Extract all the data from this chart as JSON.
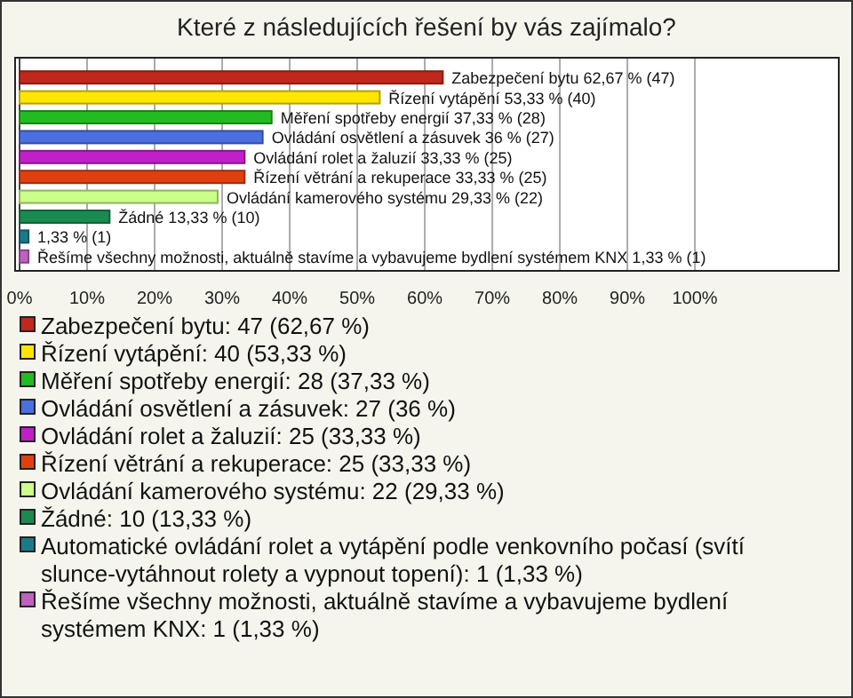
{
  "chart_data": {
    "type": "bar",
    "orientation": "horizontal",
    "stacked": true,
    "title": "Které z následujících řešení by vás zajímalo?",
    "categories": [
      null,
      null,
      null,
      null,
      null,
      null,
      null,
      null,
      null,
      null
    ],
    "series": [
      {
        "name": "Zabezpečení bytu: 47 (62,67 %)",
        "color": "#c0281c",
        "values": [
          62.67,
          null,
          null,
          null,
          null,
          null,
          null,
          null,
          null,
          null
        ],
        "value_labels": [
          "Zabezpečení bytu 62,67 % (47)",
          null,
          null,
          null,
          null,
          null,
          null,
          null,
          null,
          null
        ]
      },
      {
        "name": "Řízení vytápění: 40 (53,33 %)",
        "color": "#ffe600",
        "values": [
          null,
          53.33,
          null,
          null,
          null,
          null,
          null,
          null,
          null,
          null
        ],
        "value_labels": [
          null,
          "Řízení vytápění 53,33 % (40)",
          null,
          null,
          null,
          null,
          null,
          null,
          null,
          null
        ]
      },
      {
        "name": "Měření spotřeby energií: 28 (37,33 %)",
        "color": "#22bb22",
        "values": [
          null,
          null,
          37.33,
          null,
          null,
          null,
          null,
          null,
          null,
          null
        ],
        "value_labels": [
          null,
          null,
          "Měření spotřeby energií 37,33 % (28)",
          null,
          null,
          null,
          null,
          null,
          null,
          null
        ]
      },
      {
        "name": "Ovládání osvětlení a zásuvek: 27 (36 %)",
        "color": "#4a6fe0",
        "values": [
          null,
          null,
          null,
          36,
          null,
          null,
          null,
          null,
          null,
          null
        ],
        "value_labels": [
          null,
          null,
          null,
          "Ovládání osvětlení a zásuvek 36 % (27)",
          null,
          null,
          null,
          null,
          null,
          null
        ]
      },
      {
        "name": "Ovládání rolet a žaluzií: 25 (33,33 %)",
        "color": "#c020c8",
        "values": [
          null,
          null,
          null,
          null,
          33.33,
          null,
          null,
          null,
          null,
          null
        ],
        "value_labels": [
          null,
          null,
          null,
          null,
          "Ovládání rolet a žaluzií 33,33 % (25)",
          null,
          null,
          null,
          null,
          null
        ]
      },
      {
        "name": "Řízení větrání a rekuperace: 25 (33,33 %)",
        "color": "#e04010",
        "values": [
          null,
          null,
          null,
          null,
          null,
          33.33,
          null,
          null,
          null,
          null
        ],
        "value_labels": [
          null,
          null,
          null,
          null,
          null,
          "Řízení větrání a rekuperace 33,33 % (25)",
          null,
          null,
          null,
          null
        ]
      },
      {
        "name": "Ovládání kamerového systému: 22 (29,33 %)",
        "color": "#ccff88",
        "values": [
          null,
          null,
          null,
          null,
          null,
          null,
          29.33,
          null,
          null,
          null
        ],
        "value_labels": [
          null,
          null,
          null,
          null,
          null,
          null,
          "Ovládání kamerového systému 29,33 % (22)",
          null,
          null,
          null
        ]
      },
      {
        "name": "Žádné: 10 (13,33 %)",
        "color": "#1a8a50",
        "values": [
          null,
          null,
          null,
          null,
          null,
          null,
          null,
          13.33,
          null,
          null
        ],
        "value_labels": [
          null,
          null,
          null,
          null,
          null,
          null,
          null,
          "Žádné 13,33 % (10)",
          null,
          null
        ]
      },
      {
        "name": "Automatické ovládání rolet a vytápění podle venkovního počasí (svítí slunce-vytáhnout rolety a vypnout topení): 1 (1,33 %)",
        "color": "#1a7a8a",
        "values": [
          null,
          null,
          null,
          null,
          null,
          null,
          null,
          null,
          1.33,
          null
        ],
        "value_labels": [
          null,
          null,
          null,
          null,
          null,
          null,
          null,
          null,
          "1,33 % (1)",
          null
        ]
      },
      {
        "name": "Řešíme všechny možnosti, aktuálně stavíme a vybavujeme bydlení systémem KNX: 1 (1,33 %)",
        "color": "#c060c0",
        "values": [
          null,
          null,
          null,
          null,
          null,
          null,
          null,
          null,
          null,
          1.33
        ],
        "value_labels": [
          null,
          null,
          null,
          null,
          null,
          null,
          null,
          null,
          null,
          "Řešíme všechny možnosti, aktuálně stavíme a vybavujeme bydlení systémem KNX 1,33 % (1)"
        ]
      }
    ],
    "xlim": [
      0,
      121.3
    ],
    "xticks": [
      {
        "value": 0,
        "label": "0%"
      },
      {
        "value": 10,
        "label": "10%"
      },
      {
        "value": 20,
        "label": "20%"
      },
      {
        "value": 30,
        "label": "30%"
      },
      {
        "value": 40,
        "label": "40%"
      },
      {
        "value": 50,
        "label": "50%"
      },
      {
        "value": 60,
        "label": "60%"
      },
      {
        "value": 70,
        "label": "70%"
      },
      {
        "value": 80,
        "label": "80%"
      },
      {
        "value": 90,
        "label": "90%"
      },
      {
        "value": 100,
        "label": "100%"
      }
    ],
    "grid": "x",
    "legend": "bottom"
  }
}
